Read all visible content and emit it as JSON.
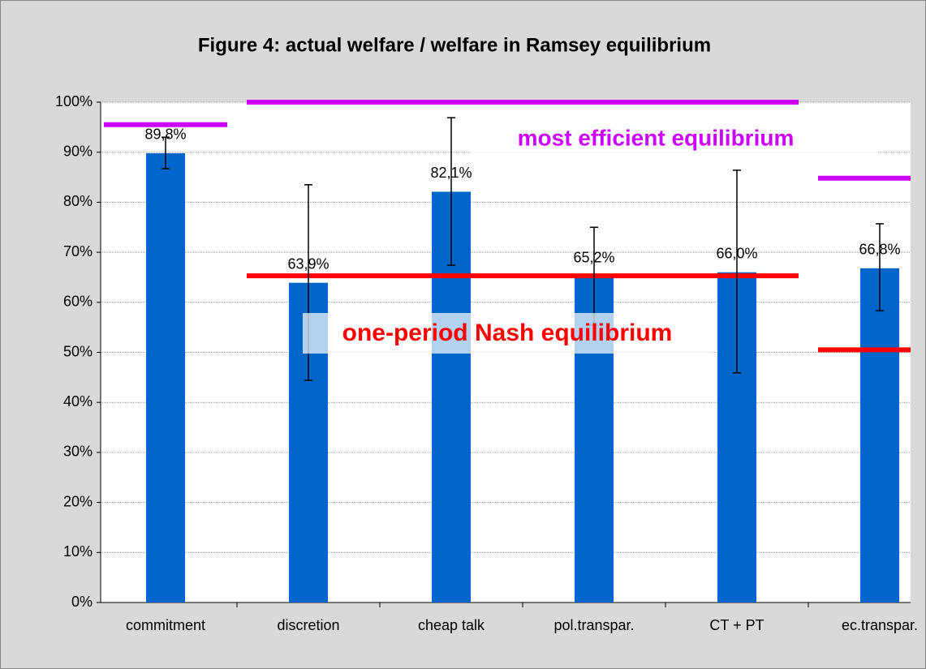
{
  "chart_data": {
    "type": "bar",
    "title": "Figure 4: actual welfare / welfare in Ramsey equilibrium",
    "categories": [
      "commitment",
      "discretion",
      "cheap talk",
      "pol.transpar.",
      "CT + PT",
      "ec.transpar."
    ],
    "values": [
      89.8,
      63.9,
      82.1,
      65.2,
      66.0,
      66.8
    ],
    "value_labels": [
      "89,8%",
      "63,9%",
      "82,1%",
      "65,2%",
      "66,0%",
      "66,8%"
    ],
    "error_low": [
      86.7,
      44.4,
      67.4,
      55.4,
      45.9,
      58.3
    ],
    "error_high": [
      93.0,
      83.5,
      96.9,
      75.0,
      86.4,
      75.7
    ],
    "color": "#0066cc",
    "reference_lines": [
      {
        "name": "most efficient equilibrium",
        "color": "#cc00ff",
        "values": [
          95.5,
          100,
          100,
          100,
          100,
          84.8
        ]
      },
      {
        "name": "one-period Nash equilibrium",
        "color": "#ff0000",
        "values": [
          null,
          65.3,
          65.3,
          65.3,
          65.3,
          50.5
        ]
      }
    ],
    "ylim": [
      0,
      100
    ],
    "yticks": [
      {
        "value": 0,
        "label": "0%"
      },
      {
        "value": 10,
        "label": "10%"
      },
      {
        "value": 20,
        "label": "20%"
      },
      {
        "value": 30,
        "label": "30%"
      },
      {
        "value": 40,
        "label": "40%"
      },
      {
        "value": 50,
        "label": "50%"
      },
      {
        "value": 60,
        "label": "60%"
      },
      {
        "value": 70,
        "label": "70%"
      },
      {
        "value": 80,
        "label": "80%"
      },
      {
        "value": 90,
        "label": "90%"
      },
      {
        "value": 100,
        "label": "100%"
      }
    ],
    "grid": true
  }
}
